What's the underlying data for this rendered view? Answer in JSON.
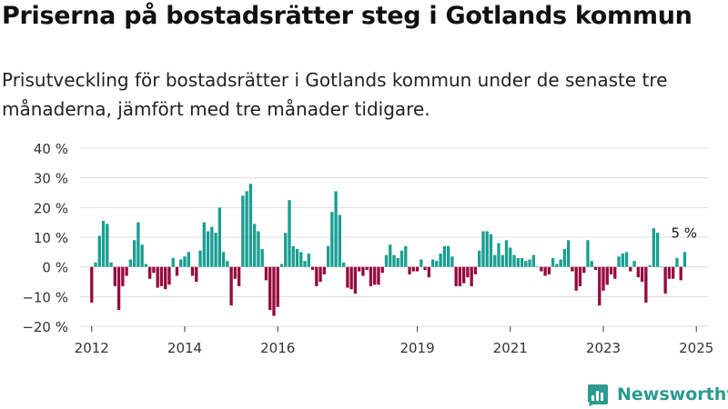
{
  "title": "Priserna på bostadsrätter steg i Gotlands kommun",
  "subtitle": "Prisutveckling för bostadsrätter i Gotlands kommun under de senaste tre månaderna, jämfört med tre månader tidigare.",
  "brand": {
    "name": "Newsworthy",
    "icon": "bar-chart-logo-icon",
    "color": "#2a9b8e"
  },
  "colors": {
    "positive": "#1a9e92",
    "negative": "#950a3d",
    "grid": "#dddddd"
  },
  "chart_data": {
    "type": "bar",
    "ylim": [
      -20,
      40
    ],
    "yticks": [
      -20,
      -10,
      0,
      10,
      20,
      30,
      40
    ],
    "ytick_labels": [
      "−20 %",
      "−10 %",
      "0 %",
      "10 %",
      "20 %",
      "30 %",
      "40 %"
    ],
    "xlim": [
      2011.75,
      2025.25
    ],
    "xticks": [
      2012,
      2014,
      2016,
      2019,
      2021,
      2023,
      2025
    ],
    "xtick_labels": [
      "2012",
      "2014",
      "2016",
      "2019",
      "2021",
      "2023",
      "2025"
    ],
    "start": 2012.0,
    "step_months": 1,
    "grid": true,
    "annotation": {
      "text": "5 %",
      "target": "last"
    },
    "values": [
      -12,
      1.5,
      10.5,
      15.5,
      14.5,
      1.5,
      -6.5,
      -14.5,
      -6.5,
      -3,
      2.5,
      9,
      15,
      7.5,
      1,
      -4,
      -2,
      -7,
      -6.5,
      -7.5,
      -6,
      3,
      -3,
      2.5,
      3.5,
      5,
      -3,
      -5,
      5.5,
      15,
      12,
      13.5,
      11.5,
      20,
      5,
      2,
      -13,
      -4,
      -6.5,
      24,
      25.5,
      28,
      14.5,
      12,
      6,
      -4.5,
      -14.5,
      -16.5,
      -13.5,
      1,
      11.5,
      22.5,
      7,
      6,
      5,
      2,
      4.5,
      -1,
      -6.5,
      -5,
      -2.5,
      7,
      18.5,
      25.5,
      17.5,
      1.5,
      -7,
      -7.5,
      -9,
      -1.5,
      -3,
      -1,
      -6.5,
      -6,
      -6,
      -2,
      4,
      7.5,
      4,
      3,
      5.5,
      7,
      -2.5,
      -1.5,
      -1.5,
      2.5,
      -1,
      -3.5,
      2.5,
      2,
      4.5,
      7,
      7,
      3.5,
      -6.5,
      -6.5,
      -5.5,
      -3.5,
      -6.5,
      -2.5,
      5.5,
      12,
      12,
      11,
      4,
      8,
      4,
      9,
      6.5,
      4,
      3,
      3,
      2,
      2.5,
      4,
      0,
      -1.5,
      -3,
      -2.5,
      3,
      1,
      2.5,
      6,
      9,
      -1.5,
      -8,
      -6.5,
      -2,
      9,
      2,
      -1,
      -13,
      -8,
      -6,
      -2.5,
      -4,
      3.5,
      4.5,
      5,
      -1.5,
      2,
      -3.5,
      -5,
      -12,
      0.5,
      13,
      11.5,
      0,
      -9,
      -4,
      -4,
      3,
      -4.5,
      5
    ]
  }
}
